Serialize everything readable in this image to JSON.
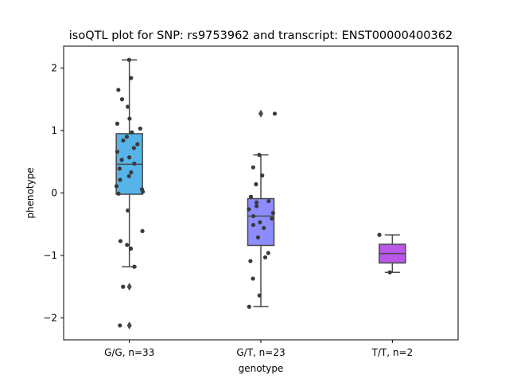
{
  "chart_data": {
    "type": "box",
    "title": "isoQTL plot for SNP: rs9753962 and transcript: ENST00000400362",
    "xlabel": "genotype",
    "ylabel": "phenotype",
    "ylim": [
      -2.35,
      2.35
    ],
    "yticks": [
      -2,
      -1,
      0,
      1,
      2
    ],
    "ytick_labels": [
      "−2",
      "−1",
      "0",
      "1",
      "2"
    ],
    "grid": false,
    "categories": [
      "G/G, n=33",
      "G/T, n=23",
      "T/T, n=2"
    ],
    "colors": [
      "#56b4e9",
      "#8c8cff",
      "#b857e8"
    ],
    "point_color": "#3a3a3a",
    "boxes": [
      {
        "category": "G/G, n=33",
        "whisker_low": -1.18,
        "q1": -0.02,
        "median": 0.46,
        "q3": 0.95,
        "whisker_high": 2.13,
        "outliers": [
          -1.5,
          -2.12
        ],
        "points": [
          2.13,
          1.84,
          1.65,
          1.5,
          1.38,
          1.19,
          1.11,
          1.03,
          0.97,
          0.9,
          0.84,
          0.78,
          0.72,
          0.66,
          0.57,
          0.53,
          0.47,
          0.39,
          0.33,
          0.27,
          0.21,
          0.11,
          0.06,
          0.02,
          -0.01,
          -0.28,
          -0.61,
          -0.77,
          -0.83,
          -0.89,
          -1.18,
          -1.5,
          -2.12
        ]
      },
      {
        "category": "G/T, n=23",
        "whisker_low": -1.82,
        "q1": -0.84,
        "median": -0.37,
        "q3": -0.09,
        "whisker_high": 0.61,
        "outliers": [
          1.27
        ],
        "points": [
          1.27,
          0.61,
          0.41,
          0.28,
          0.14,
          -0.06,
          -0.13,
          -0.15,
          -0.21,
          -0.26,
          -0.32,
          -0.37,
          -0.41,
          -0.47,
          -0.51,
          -0.56,
          -0.71,
          -0.96,
          -1.03,
          -1.09,
          -1.37,
          -1.64,
          -1.82
        ]
      },
      {
        "category": "T/T, n=2",
        "whisker_low": -1.27,
        "q1": -1.12,
        "median": -0.97,
        "q3": -0.82,
        "whisker_high": -0.67,
        "outliers": [],
        "points": [
          -0.67,
          -1.27
        ]
      }
    ]
  }
}
